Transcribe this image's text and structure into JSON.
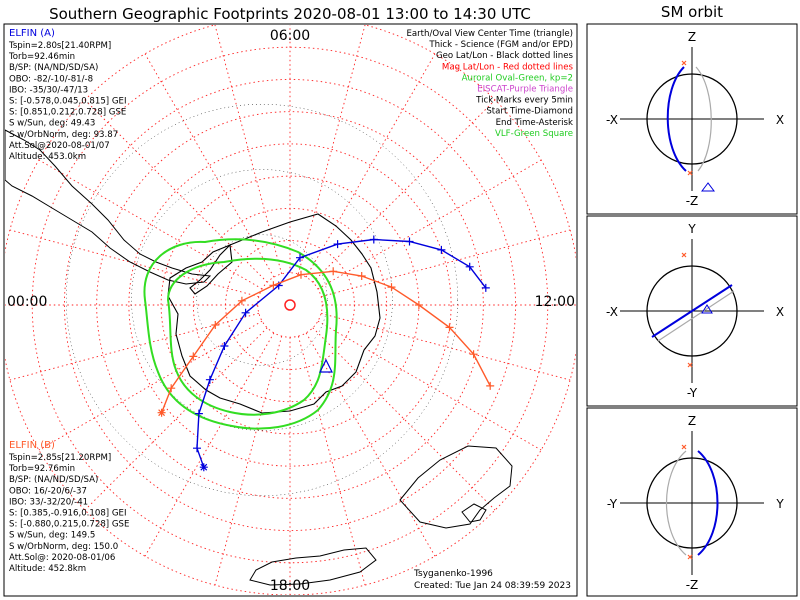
{
  "title": "Southern Geographic Footprints 2020-08-01 13:00 to 14:30 UTC",
  "sm_title": "SM orbit",
  "colors": {
    "elfin_a": "#0000dd",
    "elfin_b": "#ff5a2a",
    "oval": "#33dd22",
    "grid": "#ff2222",
    "land": "#000000",
    "frame": "#000000"
  },
  "hour_labels": {
    "top": "06:00",
    "left": "00:00",
    "right": "12:00",
    "bottom": "18:00"
  },
  "legend": [
    {
      "text": "Earth/Oval View Center Time (triangle)",
      "color": "#000000"
    },
    {
      "text": "Thick - Science (FGM and/or EPD)",
      "color": "#000000"
    },
    {
      "text": "Geo Lat/Lon - Black dotted lines",
      "color": "#000000"
    },
    {
      "text": "Mag Lat/Lon - Red dotted lines",
      "color": "#ff0000"
    },
    {
      "text": "Auroral Oval-Green, kp=2",
      "color": "#22cc22"
    },
    {
      "text": "EISCAT-Purple Triangle",
      "color": "#cc44cc"
    },
    {
      "text": "Tick Marks every 5min",
      "color": "#000000"
    },
    {
      "text": "Start Time-Diamond",
      "color": "#000000"
    },
    {
      "text": "End Time-Asterisk",
      "color": "#000000"
    },
    {
      "text": "VLF-Green Square",
      "color": "#22cc22"
    }
  ],
  "elfin_a": {
    "name": "ELFIN (A)",
    "lines": [
      "Tspin=2.80s[21.40RPM]",
      "Torb=92.46min",
      "B/SP: (NA/ND/SD/SA)",
      "OBO: -82/-10/-81/-8",
      "IBO: -35/30/-47/13",
      "S: [-0.578,0.045,0.815] GEI",
      "S: [0.851,0.212,0.728] GSE",
      "S w/Sun, deg: 49.43",
      "S w/OrbNorm, deg: 93.87",
      "Att.Sol@2020-08-01/07",
      "Altitude: 453.0km"
    ]
  },
  "elfin_b": {
    "name": "ELFIN (B)",
    "lines": [
      "Tspin=2.85s[21.20RPM]",
      "Torb=92.76min",
      "B/SP: (NA/ND/SD/SA)",
      "OBO: 16/-20/6/-37",
      "IBO: 33/-32/20/-41",
      "S: [0.385,-0.916,0.108] GEI",
      "S: [-0.880,0.215,0.728] GSE",
      "S w/Sun, deg: 149.5",
      "S w/OrbNorm, deg: 150.0",
      "Att.Sol@: 2020-08-01/06",
      "Altitude: 452.8km"
    ]
  },
  "credit": "Tsyganenko-1996",
  "created": "Created: Tue Jan 24 08:39:59 2023",
  "sm_panels": [
    {
      "top": "Z",
      "bottom": "-Z",
      "left": "-X",
      "right": "X"
    },
    {
      "top": "Y",
      "bottom": "-Y",
      "left": "-X",
      "right": "X"
    },
    {
      "top": "Z",
      "bottom": "-Z",
      "left": "-Y",
      "right": "Y"
    }
  ],
  "chart_data": {
    "type": "polar-map",
    "projection": "south polar stereographic, geographic footprints",
    "time_range": [
      "2020-08-01 13:00",
      "2020-08-01 14:30"
    ],
    "lat_rings_deg": [
      -80,
      -70,
      -60,
      -50,
      -40,
      -30,
      -20,
      -10,
      0
    ],
    "mlt_hours": [
      0,
      6,
      12,
      18
    ],
    "series": [
      {
        "name": "ELFIN (A)",
        "footprint_lat_lon": [
          [
            -29,
            -95
          ],
          [
            -33,
            -102
          ],
          [
            -40,
            -110
          ],
          [
            -48,
            -118
          ],
          [
            -57,
            -128
          ],
          [
            -66,
            -142
          ],
          [
            -75,
            -168
          ],
          [
            -83,
            150
          ],
          [
            -76,
            80
          ],
          [
            -66,
            58
          ],
          [
            -56,
            47
          ],
          [
            -46,
            40
          ],
          [
            -37,
            33
          ],
          [
            -33,
            28
          ]
        ]
      },
      {
        "name": "ELFIN (B)",
        "footprint_lat_lon": [
          [
            -23,
            -68
          ],
          [
            -31,
            -75
          ],
          [
            -40,
            -82
          ],
          [
            -50,
            -90
          ],
          [
            -58,
            -100
          ],
          [
            -66,
            -112
          ],
          [
            -73,
            -128
          ],
          [
            -80,
            -160
          ],
          [
            -82,
            140
          ],
          [
            -75,
            95
          ],
          [
            -66,
            75
          ],
          [
            -56,
            62
          ],
          [
            -45,
            55
          ],
          [
            -38,
            50
          ]
        ]
      }
    ],
    "auroral_oval_kp": 2
  }
}
